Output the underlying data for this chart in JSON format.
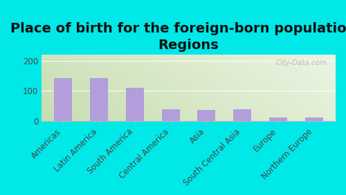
{
  "title": "Place of birth for the foreign-born population -\nRegions",
  "categories": [
    "Americas",
    "Latin America",
    "South America",
    "Central America",
    "Asia",
    "South Central Asia",
    "Europe",
    "Northern Europe"
  ],
  "values": [
    143,
    143,
    110,
    38,
    36,
    38,
    10,
    11
  ],
  "bar_color": "#b39ddb",
  "outer_background": "#00e8e8",
  "plot_bg_left": "#c8ddb0",
  "plot_bg_right": "#f0f5e8",
  "ylim": [
    0,
    220
  ],
  "yticks": [
    0,
    100,
    200
  ],
  "watermark": "City-Data.com",
  "title_fontsize": 14,
  "tick_fontsize": 8.5
}
